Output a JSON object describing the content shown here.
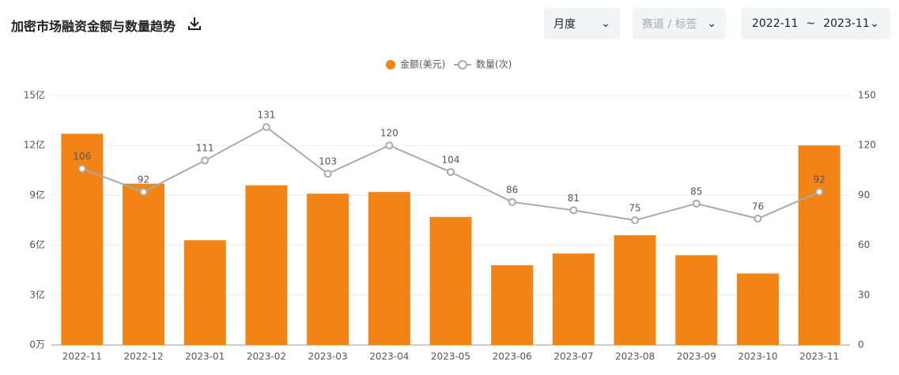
{
  "ui": {
    "period": "月度",
    "track_filter": "赛道 / 标签",
    "date_start": "2022-11",
    "date_sep": "~",
    "date_end": "2023-11"
  },
  "chart_data": {
    "type": "bar",
    "title": "加密市场融资金额与数量趋势",
    "categories": [
      "2022-11",
      "2022-12",
      "2023-01",
      "2023-02",
      "2023-03",
      "2023-04",
      "2023-05",
      "2023-06",
      "2023-07",
      "2023-08",
      "2023-09",
      "2023-10",
      "2023-11"
    ],
    "series": [
      {
        "name": "金额(美元)",
        "type": "bar",
        "color": "#f28416",
        "values": [
          12.7,
          9.7,
          6.3,
          9.6,
          9.1,
          9.2,
          7.7,
          4.8,
          5.5,
          6.6,
          5.4,
          4.3,
          12.0
        ]
      },
      {
        "name": "数量(次)",
        "type": "line",
        "axis": "y2",
        "color": "#aaaaaa",
        "values": [
          106,
          92,
          111,
          131,
          103,
          120,
          104,
          86,
          81,
          75,
          85,
          76,
          92
        ]
      }
    ],
    "ylim": [
      0,
      15
    ],
    "yticks": [
      {
        "value": 0,
        "label": "0万"
      },
      {
        "value": 3,
        "label": "3亿"
      },
      {
        "value": 6,
        "label": "6亿"
      },
      {
        "value": 9,
        "label": "9亿"
      },
      {
        "value": 12,
        "label": "12亿"
      },
      {
        "value": 15,
        "label": "15亿"
      }
    ],
    "y2lim": [
      0,
      150
    ],
    "y2ticks": [
      0,
      30,
      60,
      90,
      120,
      150
    ],
    "grid": true,
    "legend": "top"
  }
}
